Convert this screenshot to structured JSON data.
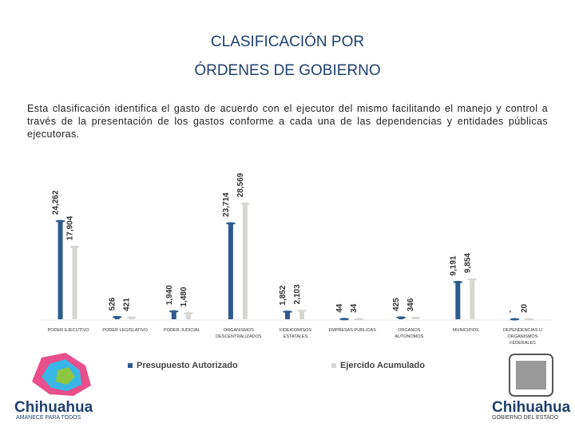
{
  "title_lines": [
    "CLASIFICACIÓN POR",
    "ÓRDENES DE GOBIERNO"
  ],
  "paragraph": "Esta clasificación identifica el gasto de acuerdo con el ejecutor del mismo facilitando el manejo y control a través de la presentación de los gastos conforme a cada una de las dependencias y entidades públicas ejecutoras.",
  "chart_data": {
    "type": "bar",
    "categories": [
      "PODER EJECUTIVO",
      "PODER LEGISLATIVO",
      "PODER JUDICIAL",
      "ORGANISMOS DESCENTRALIZADOS",
      "FIDEICOMISOS ESTATALES",
      "EMPRESAS PUBLICAS",
      "ORGANOS AUTONOMOS",
      "MUNICIPIOS",
      "DEPENDENCIAS U ORGANISMOS FEDERALES"
    ],
    "series": [
      {
        "name": "Presupuesto Autorizado",
        "color": "#2e5b8f",
        "values": [
          24262,
          526,
          1940,
          23714,
          1852,
          44,
          425,
          9191,
          0
        ],
        "value_labels": [
          "24,262",
          "526",
          "1,940",
          "23,714",
          "1,852",
          "44",
          "425",
          "9,191",
          "-"
        ]
      },
      {
        "name": "Ejercido Acumulado",
        "color": "#d6d6d2",
        "values": [
          17904,
          421,
          1480,
          28569,
          2103,
          34,
          346,
          9854,
          20
        ],
        "value_labels": [
          "17,904",
          "421",
          "1,480",
          "28,569",
          "2,103",
          "34",
          "346",
          "9,854",
          "20"
        ]
      }
    ],
    "ylim": [
      0,
      30000
    ]
  },
  "logos": {
    "left_name": "Chihuahua",
    "left_tagline": "AMANECE PARA TODOS",
    "right_name": "Chihuahua",
    "right_tagline": "GOBIERNO DEL ESTADO"
  }
}
